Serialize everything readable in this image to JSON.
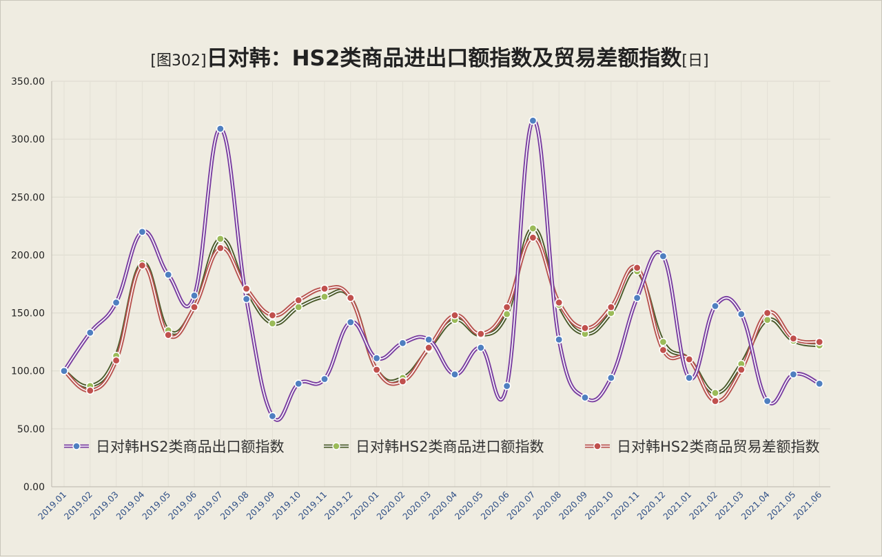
{
  "chart_data": {
    "type": "line",
    "title": {
      "prefix": "[图302]",
      "main": "日对韩：HS2类商品进出口额指数及贸易差额指数",
      "suffix": "[日]"
    },
    "categories": [
      "2019.01",
      "2019.02",
      "2019.03",
      "2019.04",
      "2019.05",
      "2019.06",
      "2019.07",
      "2019.08",
      "2019.09",
      "2019.10",
      "2019.11",
      "2019.12",
      "2020.01",
      "2020.02",
      "2020.03",
      "2020.04",
      "2020.05",
      "2020.06",
      "2020.07",
      "2020.08",
      "2020.09",
      "2020.10",
      "2020.11",
      "2020.12",
      "2021.01",
      "2021.02",
      "2021.03",
      "2021.04",
      "2021.05",
      "2021.06"
    ],
    "y_ticks": [
      "0.00",
      "50.00",
      "100.00",
      "150.00",
      "200.00",
      "250.00",
      "300.00",
      "350.00"
    ],
    "ylim": [
      0,
      350
    ],
    "grid": true,
    "legend_position": "bottom-inside",
    "series": [
      {
        "name": "日对韩HS2类商品出口额指数",
        "line_color": "#7a3fa0",
        "marker_color": "#4f7fc0",
        "values": [
          100,
          133,
          159,
          220,
          183,
          165,
          309,
          162,
          61,
          89,
          93,
          142,
          111,
          124,
          127,
          97,
          120,
          87,
          316,
          127,
          77,
          94,
          163,
          199,
          94,
          156,
          149,
          74,
          97,
          89
        ]
      },
      {
        "name": "日对韩HS2类商品进口额指数",
        "line_color": "#4a5a2a",
        "marker_color": "#9bbb59",
        "values": [
          100,
          87,
          113,
          193,
          135,
          155,
          214,
          170,
          141,
          155,
          164,
          163,
          101,
          94,
          119,
          144,
          131,
          149,
          223,
          157,
          132,
          150,
          186,
          125,
          110,
          81,
          106,
          144,
          126,
          122
        ]
      },
      {
        "name": "日对韩HS2类商品贸易差额指数",
        "line_color": "#b85450",
        "marker_color": "#c0504d",
        "values": [
          100,
          83,
          109,
          191,
          131,
          155,
          206,
          171,
          148,
          161,
          171,
          163,
          101,
          91,
          120,
          148,
          132,
          155,
          215,
          159,
          137,
          155,
          189,
          118,
          110,
          74,
          101,
          150,
          128,
          125
        ]
      }
    ]
  }
}
